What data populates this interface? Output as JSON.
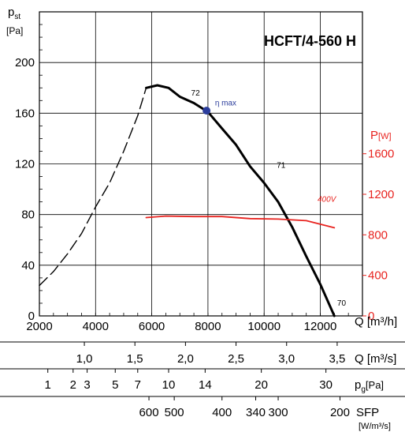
{
  "chart_data": {
    "type": "line",
    "title": "HCFT/4-560 H",
    "ylabel_main": "p",
    "ylabel_sub": "st",
    "ylabel_unit": "[Pa]",
    "ylim": [
      0,
      240
    ],
    "yticks": [
      "0",
      "40",
      "80",
      "120",
      "160",
      "200"
    ],
    "y2label_main": "P",
    "y2label_unit": "[W]",
    "y2lim": [
      0,
      3000
    ],
    "y2ticks": [
      "0",
      "400",
      "800",
      "1200",
      "1600"
    ],
    "xlabel": "Q [m³/h]",
    "xlim": [
      2000,
      13500
    ],
    "xticks": [
      "2000",
      "4000",
      "6000",
      "8000",
      "10000",
      "12000"
    ],
    "grid": true,
    "series": [
      {
        "style": "dashed",
        "color": "#000000",
        "x": [
          2000,
          2500,
          3000,
          3500,
          4000,
          4500,
          5000,
          5500,
          5800
        ],
        "y": [
          24,
          35,
          49,
          65,
          86,
          105,
          130,
          158,
          180
        ]
      },
      {
        "style": "solid",
        "color": "#000000",
        "x": [
          5800,
          6200,
          6600,
          7000,
          7500,
          8000,
          8500,
          9000,
          9500,
          10000,
          10500,
          11000,
          11500,
          12000,
          12500
        ],
        "y": [
          180,
          182,
          180,
          173,
          168,
          161,
          148,
          135,
          118,
          105,
          90,
          70,
          47,
          25,
          0
        ]
      },
      {
        "name": "400V",
        "style": "solid",
        "color": "#e8231f",
        "axis": "right",
        "x": [
          5800,
          6500,
          7500,
          8500,
          9500,
          10500,
          11500,
          12500
        ],
        "y": [
          970,
          985,
          980,
          980,
          960,
          955,
          940,
          870
        ]
      }
    ],
    "annotations": [
      {
        "text": "72",
        "x": 7400,
        "y": 174
      },
      {
        "text": "71",
        "x": 10450,
        "y": 117
      },
      {
        "text": "70",
        "x": 12600,
        "y": 8
      },
      {
        "text": "η max",
        "x": 8250,
        "y": 166,
        "color": "#2b3d9c"
      },
      {
        "text": "400V",
        "x": 11900,
        "y": 90,
        "color": "#e8231f"
      }
    ],
    "point": {
      "x": 7950,
      "y": 162,
      "color": "#2b3d9c"
    },
    "extra_scales": [
      {
        "label": "Q [m³/s]",
        "ticks": [
          "1,0",
          "1,5",
          "2,0",
          "2,5",
          "3,0",
          "3,5"
        ],
        "values": [
          3600,
          5400,
          7200,
          9000,
          10800,
          12600
        ]
      },
      {
        "label_main": "p",
        "label_sub": "g",
        "label_unit": "[Pa]",
        "ticks": [
          "1",
          "2",
          "3",
          "5",
          "7",
          "10",
          "14",
          "20",
          "30"
        ],
        "values": [
          2300,
          3200,
          3700,
          4700,
          5500,
          6600,
          7900,
          9900,
          12200
        ]
      },
      {
        "label": "SFP",
        "label_unit": "[W/m³/s]",
        "ticks": [
          "600",
          "500",
          "400",
          "340",
          "300",
          "200"
        ],
        "values": [
          5900,
          6800,
          8500,
          9700,
          10500,
          12700
        ]
      }
    ]
  }
}
